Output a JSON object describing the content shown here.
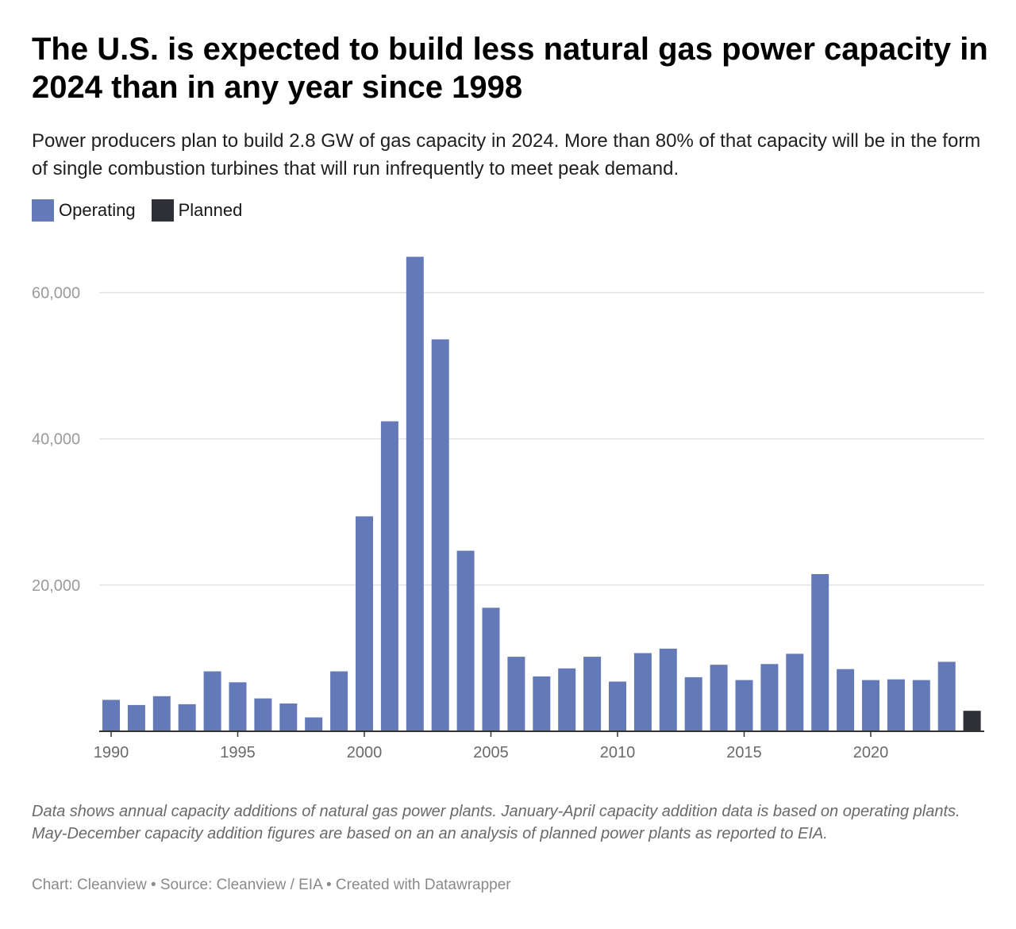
{
  "title": "The U.S. is expected to build less natural gas power capacity in 2024 than in any year since 1998",
  "subtitle": "Power producers plan to build 2.8 GW of gas capacity in 2024. More than 80% of that capacity will be in the form of single combustion turbines that will run infrequently to meet peak demand.",
  "legend": [
    {
      "label": "Operating",
      "color": "#6479b8"
    },
    {
      "label": "Planned",
      "color": "#2e3035"
    }
  ],
  "notes": "Data shows annual capacity additions of natural gas power plants. January-April capacity addition data is based on operating plants. May-December capacity addition figures are based on an an analysis of planned power plants as reported to EIA.",
  "credit": "Chart: Cleanview • Source: Cleanview / EIA • Created with Datawrapper",
  "chart_data": {
    "type": "bar",
    "title": "The U.S. is expected to build less natural gas power capacity in 2024 than in any year since 1998",
    "xlabel": "",
    "ylabel": "",
    "ylim": [
      0,
      65000
    ],
    "yticks": [
      20000,
      40000,
      60000
    ],
    "ytick_labels": [
      "20,000",
      "40,000",
      "60,000"
    ],
    "xticks": [
      1990,
      1995,
      2000,
      2005,
      2010,
      2015,
      2020
    ],
    "grid": true,
    "legend_position": "top-left",
    "x": [
      1990,
      1991,
      1992,
      1993,
      1994,
      1995,
      1996,
      1997,
      1998,
      1999,
      2000,
      2001,
      2002,
      2003,
      2004,
      2005,
      2006,
      2007,
      2008,
      2009,
      2010,
      2011,
      2012,
      2013,
      2014,
      2015,
      2016,
      2017,
      2018,
      2019,
      2020,
      2021,
      2022,
      2023,
      2024
    ],
    "series": [
      {
        "name": "Operating",
        "color": "#6479b8",
        "values": [
          4300,
          3600,
          4800,
          3700,
          8200,
          6700,
          4500,
          3800,
          1900,
          8200,
          29400,
          42400,
          64900,
          53600,
          24700,
          16900,
          10200,
          7500,
          8600,
          10200,
          6800,
          10700,
          11300,
          7400,
          9100,
          7000,
          9200,
          10600,
          21500,
          8500,
          7000,
          7100,
          7000,
          9500,
          null
        ]
      },
      {
        "name": "Planned",
        "color": "#2e3035",
        "values": [
          null,
          null,
          null,
          null,
          null,
          null,
          null,
          null,
          null,
          null,
          null,
          null,
          null,
          null,
          null,
          null,
          null,
          null,
          null,
          null,
          null,
          null,
          null,
          null,
          null,
          null,
          null,
          null,
          null,
          null,
          null,
          null,
          null,
          null,
          2800
        ]
      }
    ]
  }
}
